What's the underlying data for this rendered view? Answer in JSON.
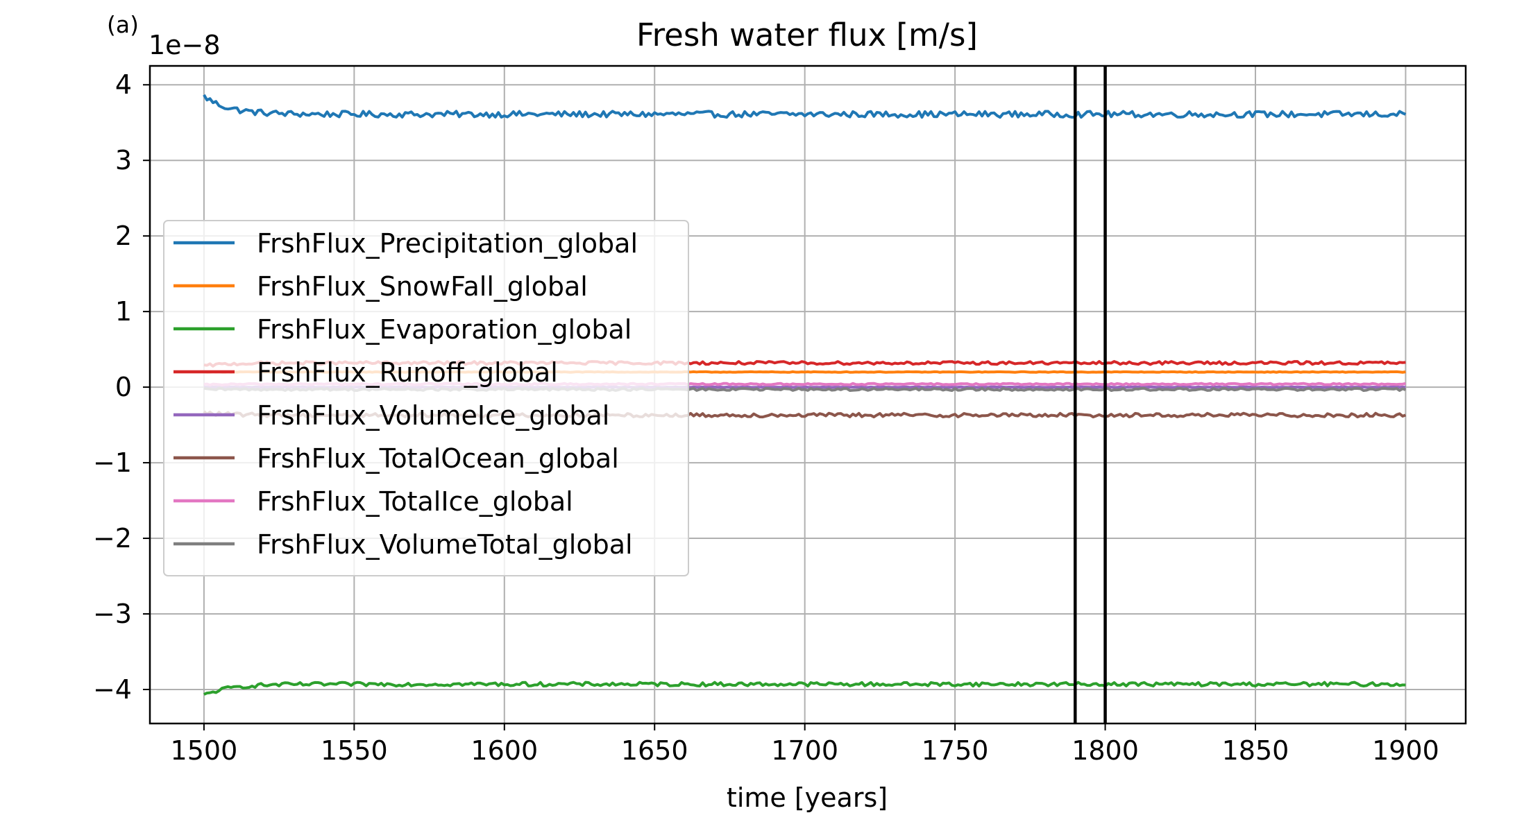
{
  "panel_label": "(a)",
  "chart_data": {
    "type": "line",
    "title": "Fresh water flux [m/s]",
    "xlabel": "time [years]",
    "ylabel": "",
    "y_offset_label": "1e−8",
    "xlim": [
      1482,
      1920
    ],
    "ylim": [
      -4.45,
      4.25
    ],
    "xticks": [
      1500,
      1550,
      1600,
      1650,
      1700,
      1750,
      1800,
      1850,
      1900
    ],
    "xtick_labels": [
      "1500",
      "1550",
      "1600",
      "1650",
      "1700",
      "1750",
      "1800",
      "1850",
      "1900"
    ],
    "yticks": [
      4,
      3,
      2,
      1,
      0,
      -1,
      -2,
      -3,
      -4
    ],
    "ytick_labels": [
      "4",
      "3",
      "2",
      "1",
      "0",
      "−1",
      "−2",
      "−3",
      "−4"
    ],
    "grid": true,
    "legend_position": "center-left",
    "vlines": [
      1790,
      1800
    ],
    "vline_color": "#000000",
    "x_start": 1500,
    "x_end": 1900,
    "x_step": 1,
    "series": [
      {
        "name": "FrshFlux_Precipitation_global",
        "color": "#1f77b4",
        "start_value": 3.85,
        "mean": 3.61,
        "noise": 0.04
      },
      {
        "name": "FrshFlux_SnowFall_global",
        "color": "#ff7f0e",
        "start_value": 0.2,
        "mean": 0.2,
        "noise": 0.004
      },
      {
        "name": "FrshFlux_Evaporation_global",
        "color": "#2ca02c",
        "start_value": -4.08,
        "mean": -3.93,
        "noise": 0.025
      },
      {
        "name": "FrshFlux_Runoff_global",
        "color": "#d62728",
        "start_value": 0.28,
        "mean": 0.32,
        "noise": 0.02
      },
      {
        "name": "FrshFlux_VolumeIce_global",
        "color": "#9467bd",
        "start_value": 0.0,
        "mean": 0.0,
        "noise": 0.003
      },
      {
        "name": "FrshFlux_TotalOcean_global",
        "color": "#8c564b",
        "start_value": -0.34,
        "mean": -0.37,
        "noise": 0.025
      },
      {
        "name": "FrshFlux_TotalIce_global",
        "color": "#e377c2",
        "start_value": 0.03,
        "mean": 0.04,
        "noise": 0.01
      },
      {
        "name": "FrshFlux_VolumeTotal_global",
        "color": "#7f7f7f",
        "start_value": -0.03,
        "mean": -0.03,
        "noise": 0.015
      }
    ]
  }
}
